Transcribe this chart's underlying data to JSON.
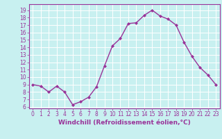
{
  "x": [
    0,
    1,
    2,
    3,
    4,
    5,
    6,
    7,
    8,
    9,
    10,
    11,
    12,
    13,
    14,
    15,
    16,
    17,
    18,
    19,
    20,
    21,
    22,
    23
  ],
  "y": [
    9,
    8.8,
    8,
    8.8,
    8,
    6.3,
    6.7,
    7.3,
    8.7,
    11.5,
    14.2,
    15.2,
    17.2,
    17.3,
    18.3,
    19.0,
    18.2,
    17.8,
    17.0,
    14.7,
    12.8,
    11.3,
    10.3,
    9.0
  ],
  "line_color": "#993399",
  "marker": "D",
  "marker_size": 2.0,
  "bg_color": "#c8f0f0",
  "grid_color": "#ffffff",
  "xlabel": "Windchill (Refroidissement éolien,°C)",
  "xlim": [
    -0.5,
    23.5
  ],
  "ylim": [
    5.8,
    19.8
  ],
  "yticks": [
    6,
    7,
    8,
    9,
    10,
    11,
    12,
    13,
    14,
    15,
    16,
    17,
    18,
    19
  ],
  "xticks": [
    0,
    1,
    2,
    3,
    4,
    5,
    6,
    7,
    8,
    9,
    10,
    11,
    12,
    13,
    14,
    15,
    16,
    17,
    18,
    19,
    20,
    21,
    22,
    23
  ],
  "tick_color": "#993399",
  "label_color": "#993399",
  "tick_fontsize": 5.5,
  "xlabel_fontsize": 6.5,
  "linewidth": 1.0
}
